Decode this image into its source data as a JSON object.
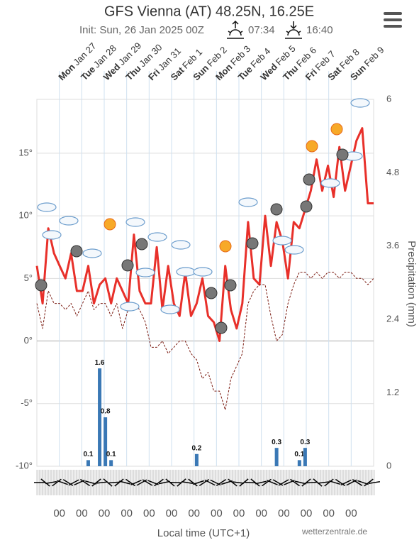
{
  "chart_data": {
    "type": "line",
    "title": "GFS Vienna (AT) 48.25N, 16.25E",
    "subtitle": "Init: Sun, 26 Jan 2025 00Z",
    "sunrise": "07:34",
    "sunset": "16:40",
    "day_labels": [
      {
        "day": "Mon",
        "date": "Jan 27"
      },
      {
        "day": "Tue",
        "date": "Jan 28"
      },
      {
        "day": "Wed",
        "date": "Jan 29"
      },
      {
        "day": "Thu",
        "date": "Jan 30"
      },
      {
        "day": "Fri",
        "date": "Jan 31"
      },
      {
        "day": "Sat",
        "date": "Feb 1"
      },
      {
        "day": "Sun",
        "date": "Feb 2"
      },
      {
        "day": "Mon",
        "date": "Feb 3"
      },
      {
        "day": "Tue",
        "date": "Feb 4"
      },
      {
        "day": "Wed",
        "date": "Feb 5"
      },
      {
        "day": "Thu",
        "date": "Feb 6"
      },
      {
        "day": "Fri",
        "date": "Feb 7"
      },
      {
        "day": "Sat",
        "date": "Feb 8"
      },
      {
        "day": "Sun",
        "date": "Feb 9"
      }
    ],
    "hour_labels": [
      "00",
      "00",
      "00",
      "00",
      "00",
      "00",
      "00",
      "00",
      "00",
      "00",
      "00",
      "00",
      "00",
      "00"
    ],
    "ylim": [
      -10,
      19.3
    ],
    "yticks": [
      {
        "value": -10,
        "label": "-10°"
      },
      {
        "value": -5,
        "label": "-5°"
      },
      {
        "value": 0,
        "label": "0°"
      },
      {
        "value": 5,
        "label": "5°"
      },
      {
        "value": 10,
        "label": "10°"
      },
      {
        "value": 15,
        "label": "15°"
      }
    ],
    "y2lim": [
      0,
      6
    ],
    "y2ticks": [
      0,
      1.2,
      2.4,
      3.6,
      4.8,
      6
    ],
    "y2_label": "Precipitation (mm)",
    "x_label": "Local time (UTC+1)",
    "credit": "wetterzentrale.de",
    "grid": true,
    "series": [
      {
        "color": "#e8302a",
        "dash": false,
        "values": [
          6,
          3,
          9,
          7,
          6,
          5,
          7,
          4,
          4,
          6,
          3,
          4.5,
          5,
          3,
          5,
          4,
          3,
          8.5,
          4,
          3,
          3,
          7.5,
          2.5,
          6,
          3,
          2,
          5.5,
          2,
          3,
          5,
          2,
          1.5,
          0,
          6,
          2.5,
          1,
          3,
          9.5,
          5,
          4.5,
          10,
          6,
          9.5,
          8,
          5,
          9.5,
          9,
          10.5,
          12,
          14.5,
          12,
          14,
          11.5,
          15.5,
          12,
          14,
          16,
          17,
          11,
          11
        ]
      },
      {
        "color": "#7a1a10",
        "dash": true,
        "values": [
          3,
          1,
          4,
          3,
          3,
          2.5,
          3,
          2,
          3,
          4,
          2.5,
          3,
          3,
          2,
          3,
          1,
          2.5,
          3,
          2.5,
          1.5,
          -0.5,
          -0.5,
          0,
          -1,
          -0.5,
          0,
          0,
          -1,
          -1.5,
          -3,
          -2.5,
          -4,
          -4,
          -5.5,
          -3,
          -2,
          -1,
          3,
          4,
          4.5,
          4.5,
          2,
          0,
          0.5,
          3,
          4.5,
          5.5,
          5.5,
          5,
          5.5,
          5,
          5.5,
          5.5,
          5,
          5.5,
          5.5,
          5,
          5,
          4.5,
          5
        ]
      },
      {
        "color": "#3a78b5",
        "axis": "y2",
        "bars": true,
        "values": [
          0,
          0,
          0,
          0,
          0,
          0,
          0,
          0,
          0,
          0.1,
          0,
          1.6,
          0.8,
          0.1,
          0,
          0,
          0,
          0,
          0,
          0,
          0,
          0,
          0,
          0,
          0,
          0,
          0,
          0,
          0.2,
          0,
          0,
          0,
          0,
          0,
          0,
          0,
          0,
          0,
          0,
          0,
          0,
          0,
          0.3,
          0,
          0,
          0,
          0.1,
          0.3,
          0,
          0,
          0,
          0,
          0,
          0,
          0,
          0,
          0,
          0,
          0,
          0
        ]
      }
    ]
  }
}
